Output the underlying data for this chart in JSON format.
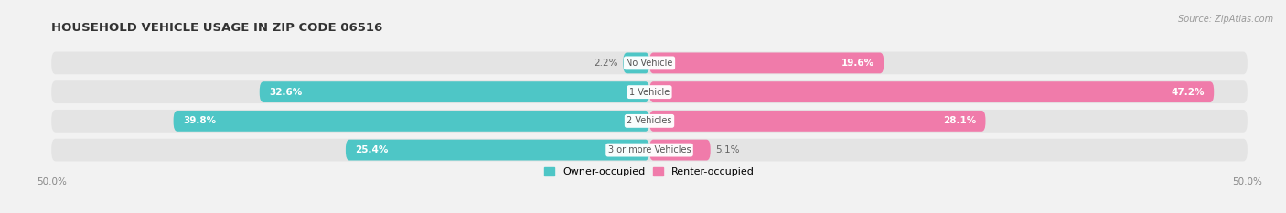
{
  "title": "HOUSEHOLD VEHICLE USAGE IN ZIP CODE 06516",
  "source": "Source: ZipAtlas.com",
  "categories": [
    "No Vehicle",
    "1 Vehicle",
    "2 Vehicles",
    "3 or more Vehicles"
  ],
  "owner_values": [
    2.2,
    32.6,
    39.8,
    25.4
  ],
  "renter_values": [
    19.6,
    47.2,
    28.1,
    5.1
  ],
  "owner_color": "#4ec6c6",
  "renter_color": "#f07baa",
  "background_color": "#f2f2f2",
  "bar_bg_color": "#e4e4e4",
  "xlim": 50.0,
  "bar_height": 0.72,
  "bar_gap": 0.06,
  "legend_owner": "Owner-occupied",
  "legend_renter": "Renter-occupied",
  "title_fontsize": 9.5,
  "label_fontsize": 7.5,
  "tick_fontsize": 7.5,
  "source_fontsize": 7,
  "cat_fontsize": 7.0
}
